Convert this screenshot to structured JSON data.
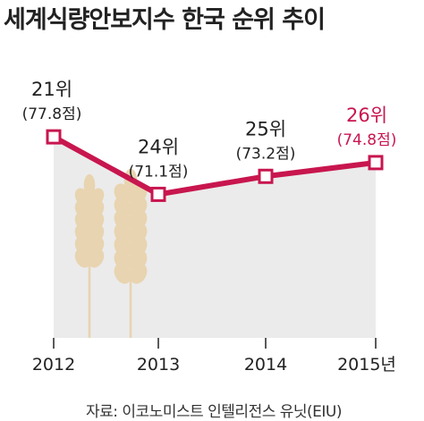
{
  "title": "세계식량안보지수 한국 순위 추이",
  "source": "자료: 이코노미스트 인텔리전스 유닛(EIU)",
  "colors": {
    "line": "#c8164f",
    "area": "#ebebeb",
    "text": "#222222",
    "highlight": "#c8164f",
    "wheat": "#e8d4b0"
  },
  "icons": [
    "wheat-illustration"
  ],
  "chart_data": {
    "type": "line",
    "title": "세계식량안보지수 한국 순위 추이",
    "categories": [
      "2012",
      "2013",
      "2014",
      "2015년"
    ],
    "values": [
      21,
      24,
      25,
      26
    ],
    "scores": [
      77.8,
      71.1,
      73.2,
      74.8
    ],
    "rank_labels": [
      "21위",
      "24위",
      "25위",
      "26위"
    ],
    "score_labels": [
      "(77.8점)",
      "(71.1점)",
      "(73.2점)",
      "(74.8점)"
    ],
    "highlight_index": 3,
    "xlabel": "",
    "ylabel": "",
    "grid": false
  }
}
